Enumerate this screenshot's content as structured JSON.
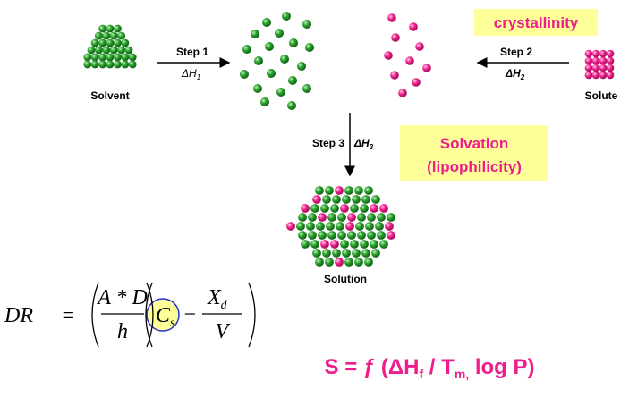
{
  "crystallinity_label": "crystallinity",
  "solvent": {
    "label": "Solvent"
  },
  "solute": {
    "label": "Solute"
  },
  "solution": {
    "label": "Solution"
  },
  "step1": {
    "label": "Step 1",
    "enthalpy": {
      "symbol": "ΔH",
      "subscript": "1"
    }
  },
  "step2": {
    "label": "Step 2",
    "enthalpy": {
      "symbol": "ΔH",
      "subscript": "2"
    }
  },
  "step3": {
    "label": "Step 3",
    "enthalpy": {
      "symbol": "ΔH",
      "subscript": "3"
    }
  },
  "solvation_label": {
    "line1": "Solvation",
    "line2": "(lipophilicity)"
  },
  "equation": {
    "lhs": "DR",
    "equals": "=",
    "numerator1": "A * D",
    "denominator1": "h",
    "c": "C",
    "c_sub": "s",
    "minus": "−",
    "x": "X",
    "x_sub": "d",
    "denominator2": "V"
  },
  "solubility_formula": {
    "prefix": "S = ƒ (ΔH",
    "sub_f": "f",
    "mid": " / T",
    "sub_m": "m,",
    "suffix": " log P)"
  }
}
